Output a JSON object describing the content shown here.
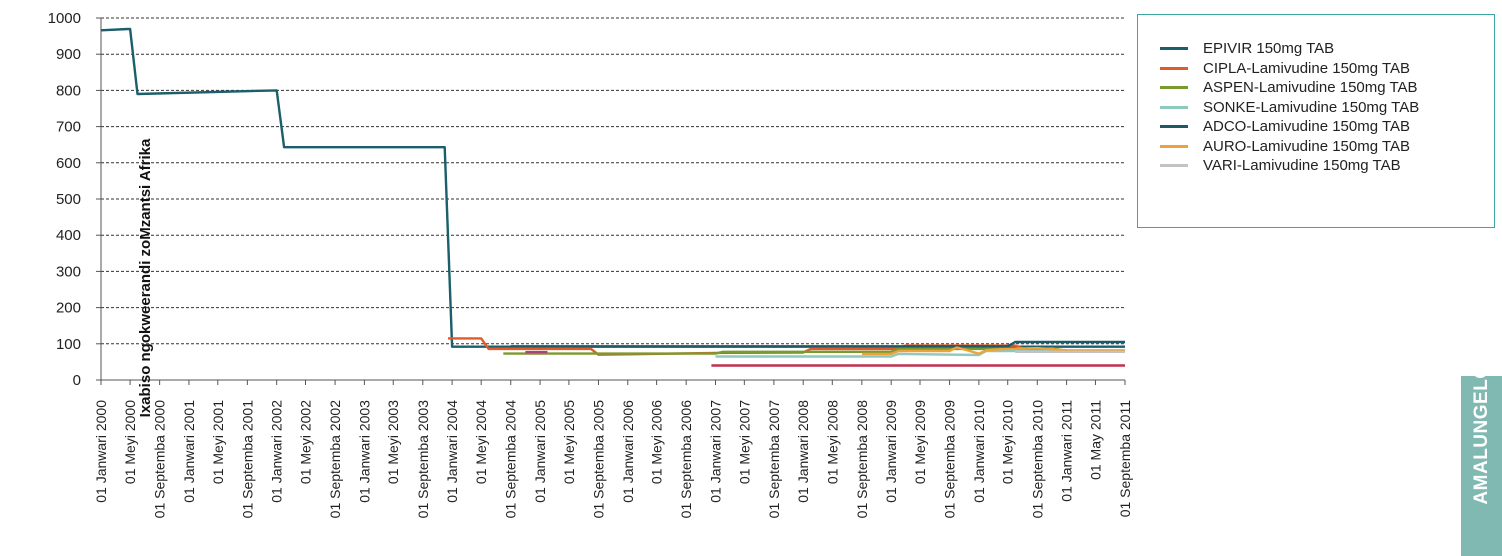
{
  "chart_data": {
    "type": "line",
    "ylabel": "Ixabiso ngokweerandi zoMzantsi Afrika",
    "xlabel": "",
    "ylim": [
      0,
      1000
    ],
    "yticks": [
      0,
      100,
      200,
      300,
      400,
      500,
      600,
      700,
      800,
      900,
      1000
    ],
    "grid": "horizontal dashed",
    "legend_position": "top-right",
    "x_range": [
      "2000-01-01",
      "2011-09-01"
    ],
    "x_tick_dates": [
      "2000-01-01",
      "2000-05-01",
      "2000-09-01",
      "2001-01-01",
      "2001-05-01",
      "2001-09-01",
      "2002-01-01",
      "2002-05-01",
      "2002-09-01",
      "2003-01-01",
      "2003-05-01",
      "2003-09-01",
      "2004-01-01",
      "2004-05-01",
      "2004-09-01",
      "2005-01-01",
      "2005-05-01",
      "2005-09-01",
      "2006-01-01",
      "2006-05-01",
      "2006-09-01",
      "2007-01-01",
      "2007-05-01",
      "2007-09-01",
      "2008-01-01",
      "2008-05-01",
      "2008-09-01",
      "2009-01-01",
      "2009-05-01",
      "2009-09-01",
      "2010-01-01",
      "2010-05-01",
      "2010-09-01",
      "2011-01-01",
      "2011-05-01",
      "2011-09-01"
    ],
    "x_tick_labels": [
      "01 Janwari 2000",
      "01 Meyi 2000",
      "01 Septemba 2000",
      "01 Janwari 2001",
      "01 Meyi 2001",
      "01 Septemba 2001",
      "01 Janwari 2002",
      "01 Meyi 2002",
      "01 Septemba 2002",
      "01 Janwari 2003",
      "01 Meyi 2003",
      "01 Septemba 2003",
      "01 Janwari 2004",
      "01 Meyi 2004",
      "01 Septemba 2004",
      "01 Janwari 2005",
      "01 Meyi 2005",
      "01 Septemba 2005",
      "01 Janwari 2006",
      "01 Meyi 2006",
      "01 Septemba 2006",
      "01 Janwari 2007",
      "01 Meyi 2007",
      "01 Septemba 2007",
      "01 Janwari 2008",
      "01 Meyi 2008",
      "01 Septemba 2008",
      "01 Janwari 2009",
      "01 Meyi 2009",
      "01 Septemba 2009",
      "01 Janwari 2010",
      "01 Meyi 2010",
      "01 Septemba 2010",
      "01 Janwari 2011",
      "01 May 2011",
      "01 Septemba 2011"
    ],
    "series": [
      {
        "name": "EPIVIR 150mg TAB",
        "color": "#1a5f6b",
        "points": [
          [
            "2000-01-01",
            966
          ],
          [
            "2000-05-01",
            970
          ],
          [
            "2000-06-01",
            790
          ],
          [
            "2002-01-01",
            800
          ],
          [
            "2002-02-01",
            643
          ],
          [
            "2003-12-01",
            643
          ],
          [
            "2004-01-01",
            92
          ],
          [
            "2011-09-01",
            92
          ]
        ]
      },
      {
        "name": "CIPLA-Lamivudine 150mg TAB",
        "color": "#e05a2b",
        "points": [
          [
            "2003-12-15",
            115
          ],
          [
            "2004-05-01",
            115
          ],
          [
            "2004-06-01",
            86
          ],
          [
            "2005-08-01",
            86
          ],
          [
            "2005-09-01",
            70
          ],
          [
            "2007-01-01",
            75
          ],
          [
            "2008-01-01",
            76
          ],
          [
            "2008-02-01",
            86
          ],
          [
            "2009-02-01",
            86
          ],
          [
            "2009-03-01",
            95
          ],
          [
            "2010-06-01",
            95
          ],
          [
            "2010-08-01",
            80
          ],
          [
            "2011-09-01",
            80
          ]
        ]
      },
      {
        "name": "ASPEN-Lamivudine 150mg TAB",
        "color": "#7a9a2e",
        "points": [
          [
            "2004-08-01",
            73
          ],
          [
            "2007-01-01",
            73
          ],
          [
            "2007-02-01",
            78
          ],
          [
            "2009-01-01",
            78
          ],
          [
            "2009-02-01",
            86
          ],
          [
            "2010-10-01",
            86
          ],
          [
            "2010-11-01",
            88
          ],
          [
            "2011-01-01",
            80
          ],
          [
            "2011-09-01",
            80
          ]
        ]
      },
      {
        "name": "SONKE-Lamivudine 150mg TAB",
        "color": "#8ec9c0",
        "points": [
          [
            "2007-01-01",
            65
          ],
          [
            "2009-01-01",
            65
          ],
          [
            "2009-02-01",
            72
          ],
          [
            "2010-01-01",
            69
          ],
          [
            "2010-02-01",
            80
          ],
          [
            "2011-09-01",
            80
          ]
        ]
      },
      {
        "name": "ADCO-Lamivudine 150mg TAB",
        "color": "#1e5a66",
        "points": [
          [
            "2004-09-01",
            93
          ],
          [
            "2010-05-01",
            93
          ],
          [
            "2010-06-01",
            105
          ],
          [
            "2011-09-01",
            105
          ]
        ]
      },
      {
        "name": "AURO-Lamivudine 150mg TAB",
        "color": "#f0a23a",
        "points": [
          [
            "2008-09-01",
            72
          ],
          [
            "2009-01-01",
            72
          ],
          [
            "2009-02-01",
            80
          ],
          [
            "2009-09-01",
            80
          ],
          [
            "2009-10-01",
            90
          ],
          [
            "2010-01-01",
            73
          ],
          [
            "2010-02-01",
            82
          ],
          [
            "2010-04-01",
            85
          ],
          [
            "2010-09-01",
            88
          ],
          [
            "2011-01-01",
            82
          ],
          [
            "2011-09-01",
            82
          ]
        ]
      },
      {
        "name": "VARI-Lamivudine 150mg TAB",
        "color": "#c3c3c3",
        "points": [
          [
            "2010-06-01",
            78
          ],
          [
            "2011-09-01",
            78
          ]
        ]
      },
      {
        "color": "#c0304f",
        "points": [
          [
            "2006-12-15",
            40
          ],
          [
            "2011-09-01",
            40
          ]
        ]
      },
      {
        "color": "#b0407a",
        "points": [
          [
            "2004-11-01",
            77
          ],
          [
            "2005-02-01",
            77
          ]
        ]
      }
    ]
  },
  "side_tab": {
    "text": "AMALUNGELO"
  }
}
